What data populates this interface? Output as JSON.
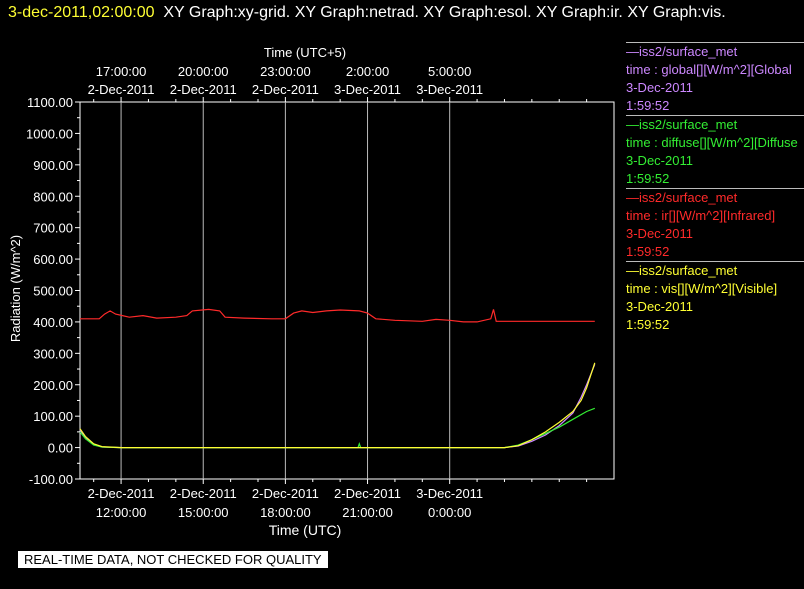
{
  "header": {
    "date_label": "3-dec-2011,02:00:00",
    "graph_list": "XY Graph:xy-grid.  XY Graph:netrad.  XY Graph:esol.  XY Graph:ir.  XY Graph:vis."
  },
  "disclaimer": "REAL-TIME DATA, NOT CHECKED FOR QUALITY",
  "legend": [
    {
      "source": "—iss2/surface_met",
      "variable": "time : global[][W/m^2][Global",
      "date": "3-Dec-2011",
      "time": "1:59:52",
      "color": "#cc88ff"
    },
    {
      "source": "—iss2/surface_met",
      "variable": "time : diffuse[][W/m^2][Diffuse",
      "date": "3-Dec-2011",
      "time": "1:59:52",
      "color": "#33ee33"
    },
    {
      "source": "—iss2/surface_met",
      "variable": "time : ir[][W/m^2][Infrared]",
      "date": "3-Dec-2011",
      "time": "1:59:52",
      "color": "#ff2a2a"
    },
    {
      "source": "—iss2/surface_met",
      "variable": "time : vis[][W/m^2][Visible]",
      "date": "3-Dec-2011",
      "time": "1:59:52",
      "color": "#ffff33"
    }
  ],
  "chart_data": {
    "type": "line",
    "xlabel": "Time (UTC)",
    "top_xlabel": "Time (UTC+5)",
    "ylabel": "Radiation (W/m^2)",
    "ylim": [
      -100,
      1100
    ],
    "xlim_hours": [
      -1.5,
      14.5
    ],
    "yticks": [
      "-100.00",
      "0.00",
      "100.00",
      "200.00",
      "300.00",
      "400.00",
      "500.00",
      "600.00",
      "700.00",
      "800.00",
      "900.00",
      "1000.00",
      "1100.00"
    ],
    "bottom_ticks": [
      {
        "date": "2-Dec-2011",
        "time": "12:00:00"
      },
      {
        "date": "2-Dec-2011",
        "time": "15:00:00"
      },
      {
        "date": "2-Dec-2011",
        "time": "18:00:00"
      },
      {
        "date": "2-Dec-2011",
        "time": "21:00:00"
      },
      {
        "date": "3-Dec-2011",
        "time": "0:00:00"
      }
    ],
    "top_ticks": [
      {
        "date": "2-Dec-2011",
        "time": "17:00:00"
      },
      {
        "date": "2-Dec-2011",
        "time": "20:00:00"
      },
      {
        "date": "2-Dec-2011",
        "time": "23:00:00"
      },
      {
        "date": "3-Dec-2011",
        "time": "2:00:00"
      },
      {
        "date": "3-Dec-2011",
        "time": "5:00:00"
      }
    ],
    "grid": true,
    "series": [
      {
        "name": "ir",
        "color": "#ff2a2a",
        "points": [
          [
            -1.5,
            410
          ],
          [
            -0.8,
            410
          ],
          [
            -0.6,
            425
          ],
          [
            -0.4,
            435
          ],
          [
            -0.2,
            425
          ],
          [
            0.3,
            415
          ],
          [
            0.8,
            420
          ],
          [
            1.3,
            412
          ],
          [
            2.0,
            415
          ],
          [
            2.4,
            420
          ],
          [
            2.6,
            435
          ],
          [
            3.2,
            440
          ],
          [
            3.6,
            435
          ],
          [
            3.8,
            415
          ],
          [
            4.5,
            412
          ],
          [
            5.5,
            410
          ],
          [
            6.0,
            410
          ],
          [
            6.3,
            428
          ],
          [
            6.6,
            435
          ],
          [
            7.0,
            430
          ],
          [
            7.5,
            435
          ],
          [
            8.0,
            438
          ],
          [
            8.7,
            435
          ],
          [
            9.0,
            428
          ],
          [
            9.3,
            410
          ],
          [
            10.0,
            405
          ],
          [
            11.0,
            402
          ],
          [
            11.5,
            408
          ],
          [
            12.0,
            405
          ],
          [
            12.5,
            400
          ],
          [
            13.0,
            400
          ],
          [
            13.5,
            410
          ],
          [
            13.6,
            440
          ],
          [
            13.7,
            402
          ],
          [
            14.0,
            402
          ],
          [
            14.5,
            402
          ],
          [
            15.0,
            402
          ],
          [
            16.0,
            402
          ],
          [
            17.0,
            402
          ],
          [
            17.3,
            402
          ]
        ]
      },
      {
        "name": "global",
        "color": "#cc88ff",
        "points": [
          [
            -1.5,
            55
          ],
          [
            -1.3,
            30
          ],
          [
            -1.0,
            10
          ],
          [
            -0.7,
            2
          ],
          [
            0,
            0
          ],
          [
            2,
            0
          ],
          [
            4,
            0
          ],
          [
            6,
            0
          ],
          [
            8,
            0
          ],
          [
            10,
            0
          ],
          [
            12,
            0
          ],
          [
            14.0,
            0
          ],
          [
            14.5,
            5
          ],
          [
            15.0,
            20
          ],
          [
            15.5,
            40
          ],
          [
            16.0,
            70
          ],
          [
            16.5,
            110
          ],
          [
            16.8,
            160
          ],
          [
            17.0,
            200
          ],
          [
            17.3,
            265
          ]
        ]
      },
      {
        "name": "diffuse",
        "color": "#33ee33",
        "points": [
          [
            -1.5,
            50
          ],
          [
            -1.3,
            28
          ],
          [
            -1.0,
            8
          ],
          [
            -0.7,
            2
          ],
          [
            0,
            0
          ],
          [
            2,
            0
          ],
          [
            4,
            0
          ],
          [
            6,
            0
          ],
          [
            8.65,
            0
          ],
          [
            8.7,
            12
          ],
          [
            8.75,
            0
          ],
          [
            10,
            0
          ],
          [
            12,
            0
          ],
          [
            14.0,
            0
          ],
          [
            14.5,
            8
          ],
          [
            15.0,
            25
          ],
          [
            15.5,
            45
          ],
          [
            16.0,
            65
          ],
          [
            16.5,
            90
          ],
          [
            17.0,
            115
          ],
          [
            17.3,
            125
          ]
        ]
      },
      {
        "name": "vis",
        "color": "#ffff33",
        "points": [
          [
            -1.5,
            60
          ],
          [
            -1.3,
            35
          ],
          [
            -1.0,
            12
          ],
          [
            -0.7,
            3
          ],
          [
            0,
            0
          ],
          [
            2,
            0
          ],
          [
            4,
            0
          ],
          [
            6,
            0
          ],
          [
            8,
            0
          ],
          [
            10,
            0
          ],
          [
            12,
            0
          ],
          [
            14.0,
            0
          ],
          [
            14.5,
            6
          ],
          [
            15.0,
            25
          ],
          [
            15.5,
            50
          ],
          [
            16.0,
            80
          ],
          [
            16.5,
            115
          ],
          [
            16.8,
            150
          ],
          [
            17.0,
            190
          ],
          [
            17.3,
            270
          ]
        ]
      }
    ]
  }
}
